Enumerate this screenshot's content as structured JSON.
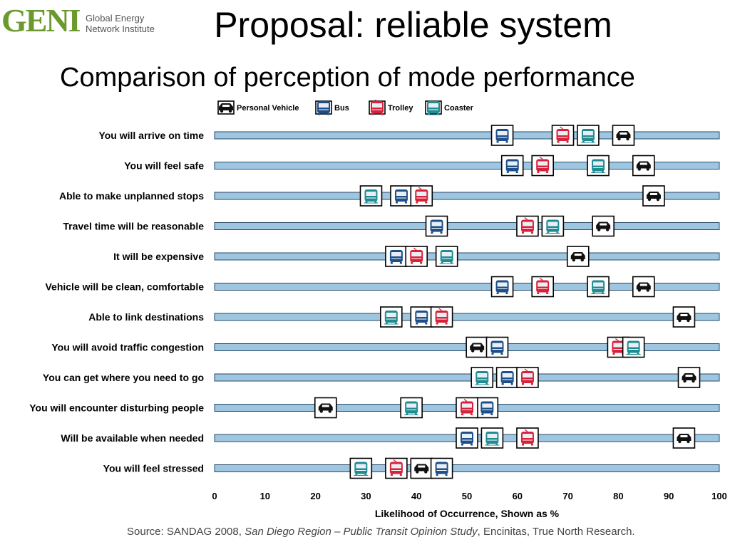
{
  "logo": {
    "mark": "GENI",
    "text_line1": "Global Energy",
    "text_line2": "Network Institute"
  },
  "title": "Proposal: reliable system",
  "subtitle": "Comparison of perception of mode performance",
  "source": {
    "prefix": "Source: SANDAG 2008, ",
    "italic": "San Diego Region – Public Transit Opinion Study",
    "suffix": ", Encinitas, True North Research."
  },
  "colors": {
    "bar": "#9ec6e0",
    "bus": "#1d4f8a",
    "trolley": "#d8213a",
    "coaster": "#1f8c93",
    "car": "#111111"
  },
  "chart_data": {
    "type": "scatter",
    "xlabel": "Likelihood of Occurrence, Shown as %",
    "xlim": [
      0,
      100
    ],
    "xticks": [
      0,
      10,
      20,
      30,
      40,
      50,
      60,
      70,
      80,
      90,
      100
    ],
    "legend": {
      "placement": "top",
      "entries": [
        {
          "key": "car",
          "label": "Personal Vehicle",
          "icon": "car-icon"
        },
        {
          "key": "bus",
          "label": "Bus",
          "icon": "bus-icon"
        },
        {
          "key": "trolley",
          "label": "Trolley",
          "icon": "trolley-icon"
        },
        {
          "key": "coaster",
          "label": "Coaster",
          "icon": "coaster-icon"
        }
      ]
    },
    "categories": [
      "You will arrive on time",
      "You will feel safe",
      "Able to make unplanned stops",
      "Travel time will be reasonable",
      "It will be expensive",
      "Vehicle will be clean, comfortable",
      "Able to link destinations",
      "You will avoid traffic congestion",
      "You can get where you need to go",
      "You will encounter disturbing people",
      "Will be available when needed",
      "You will feel stressed"
    ],
    "series": [
      {
        "name": "Personal Vehicle",
        "key": "car",
        "values": [
          81,
          85,
          87,
          77,
          72,
          85,
          93,
          52,
          94,
          22,
          93,
          41
        ]
      },
      {
        "name": "Bus",
        "key": "bus",
        "values": [
          57,
          59,
          37,
          44,
          36,
          57,
          41,
          56,
          58,
          54,
          50,
          45
        ]
      },
      {
        "name": "Trolley",
        "key": "trolley",
        "values": [
          69,
          65,
          41,
          62,
          40,
          65,
          45,
          80,
          62,
          50,
          62,
          36
        ]
      },
      {
        "name": "Coaster",
        "key": "coaster",
        "values": [
          74,
          76,
          31,
          67,
          46,
          76,
          35,
          83,
          53,
          39,
          55,
          29
        ]
      }
    ]
  }
}
